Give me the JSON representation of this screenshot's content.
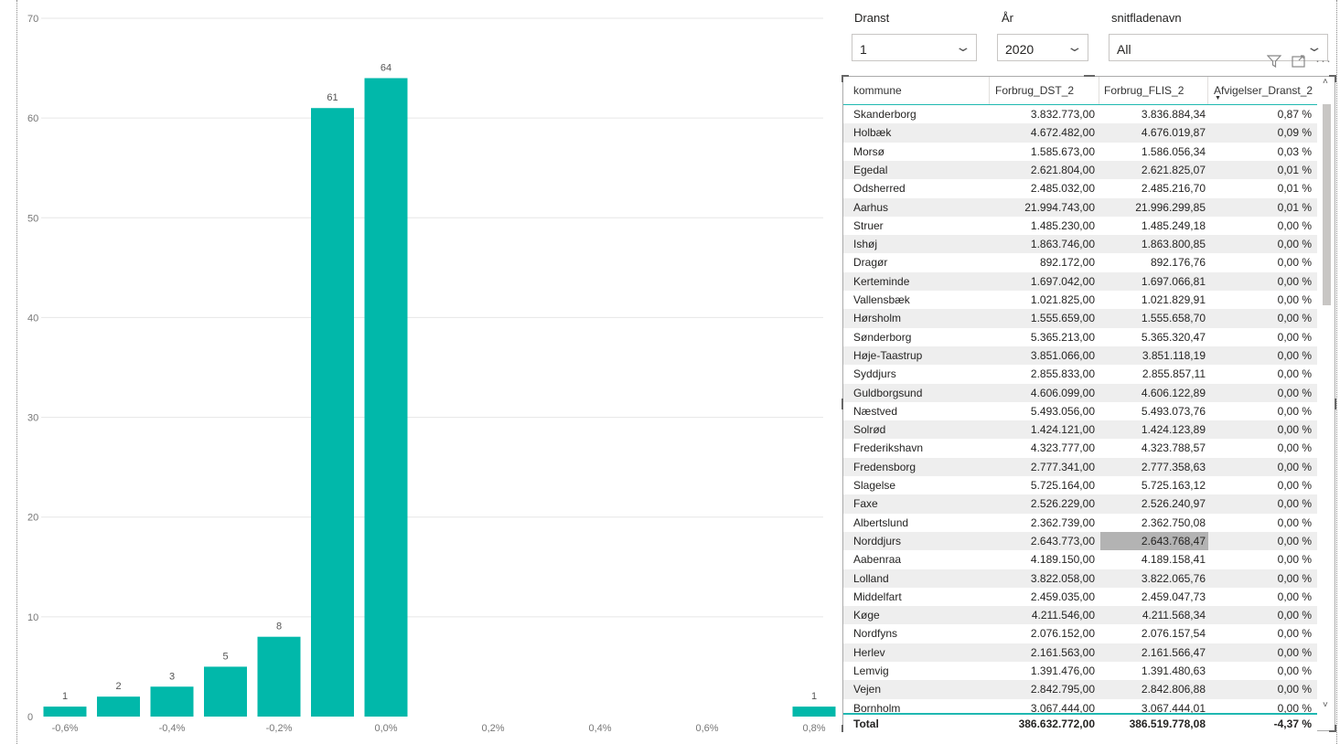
{
  "chart_data": {
    "type": "bar",
    "x_ticks": [
      "-0,6%",
      "-0,4%",
      "-0,2%",
      "0,0%",
      "0,2%",
      "0,4%",
      "0,6%",
      "0,8%"
    ],
    "y_ticks": [
      "0",
      "10",
      "20",
      "30",
      "40",
      "50",
      "60",
      "70"
    ],
    "ylim": [
      0,
      70
    ],
    "xlim": [
      -0.7,
      0.85
    ],
    "grid": true,
    "color": "#01b8aa",
    "x": [
      -0.6,
      -0.5,
      -0.4,
      -0.3,
      -0.2,
      -0.1,
      0.0,
      0.8
    ],
    "values": [
      1,
      2,
      3,
      5,
      8,
      61,
      64,
      1
    ],
    "data_labels": [
      "1",
      "2",
      "3",
      "5",
      "8",
      "61",
      "64",
      "1"
    ]
  },
  "slicers": {
    "dranst": {
      "label": "Dranst",
      "value": "1"
    },
    "aar": {
      "label": "År",
      "value": "2020"
    },
    "snitflade": {
      "label": "snitfladenavn",
      "value": "All"
    }
  },
  "visual_header": {
    "filter_icon": "filter-icon",
    "focus_icon": "focus-mode-icon",
    "more_icon": "more-options-icon"
  },
  "table": {
    "headers": [
      "kommune",
      "Forbrug_DST_2",
      "Forbrug_FLIS_2",
      "Afvigelser_Dranst_2"
    ],
    "rows": [
      [
        "Skanderborg",
        "3.832.773,00",
        "3.836.884,34",
        "0,87 %"
      ],
      [
        "Holbæk",
        "4.672.482,00",
        "4.676.019,87",
        "0,09 %"
      ],
      [
        "Morsø",
        "1.585.673,00",
        "1.586.056,34",
        "0,03 %"
      ],
      [
        "Egedal",
        "2.621.804,00",
        "2.621.825,07",
        "0,01 %"
      ],
      [
        "Odsherred",
        "2.485.032,00",
        "2.485.216,70",
        "0,01 %"
      ],
      [
        "Aarhus",
        "21.994.743,00",
        "21.996.299,85",
        "0,01 %"
      ],
      [
        "Struer",
        "1.485.230,00",
        "1.485.249,18",
        "0,00 %"
      ],
      [
        "Ishøj",
        "1.863.746,00",
        "1.863.800,85",
        "0,00 %"
      ],
      [
        "Dragør",
        "892.172,00",
        "892.176,76",
        "0,00 %"
      ],
      [
        "Kerteminde",
        "1.697.042,00",
        "1.697.066,81",
        "0,00 %"
      ],
      [
        "Vallensbæk",
        "1.021.825,00",
        "1.021.829,91",
        "0,00 %"
      ],
      [
        "Hørsholm",
        "1.555.659,00",
        "1.555.658,70",
        "0,00 %"
      ],
      [
        "Sønderborg",
        "5.365.213,00",
        "5.365.320,47",
        "0,00 %"
      ],
      [
        "Høje-Taastrup",
        "3.851.066,00",
        "3.851.118,19",
        "0,00 %"
      ],
      [
        "Syddjurs",
        "2.855.833,00",
        "2.855.857,11",
        "0,00 %"
      ],
      [
        "Guldborgsund",
        "4.606.099,00",
        "4.606.122,89",
        "0,00 %"
      ],
      [
        "Næstved",
        "5.493.056,00",
        "5.493.073,76",
        "0,00 %"
      ],
      [
        "Solrød",
        "1.424.121,00",
        "1.424.123,89",
        "0,00 %"
      ],
      [
        "Frederikshavn",
        "4.323.777,00",
        "4.323.788,57",
        "0,00 %"
      ],
      [
        "Fredensborg",
        "2.777.341,00",
        "2.777.358,63",
        "0,00 %"
      ],
      [
        "Slagelse",
        "5.725.164,00",
        "5.725.163,12",
        "0,00 %"
      ],
      [
        "Faxe",
        "2.526.229,00",
        "2.526.240,97",
        "0,00 %"
      ],
      [
        "Albertslund",
        "2.362.739,00",
        "2.362.750,08",
        "0,00 %"
      ],
      [
        "Norddjurs",
        "2.643.773,00",
        "2.643.768,47",
        "0,00 %"
      ],
      [
        "Aabenraa",
        "4.189.150,00",
        "4.189.158,41",
        "0,00 %"
      ],
      [
        "Lolland",
        "3.822.058,00",
        "3.822.065,76",
        "0,00 %"
      ],
      [
        "Middelfart",
        "2.459.035,00",
        "2.459.047,73",
        "0,00 %"
      ],
      [
        "Køge",
        "4.211.546,00",
        "4.211.568,34",
        "0,00 %"
      ],
      [
        "Nordfyns",
        "2.076.152,00",
        "2.076.157,54",
        "0,00 %"
      ],
      [
        "Herlev",
        "2.161.563,00",
        "2.161.566,47",
        "0,00 %"
      ],
      [
        "Lemvig",
        "1.391.476,00",
        "1.391.480,63",
        "0,00 %"
      ],
      [
        "Vejen",
        "2.842.795,00",
        "2.842.806,88",
        "0,00 %"
      ],
      [
        "Bornholm",
        "3.067.444,00",
        "3.067.444,01",
        "0,00 %"
      ]
    ],
    "highlighted_row": 23,
    "total": [
      "Total",
      "386.632.772,00",
      "386.519.778,08",
      "-4,37 %"
    ],
    "sort_icon": "sort-descending-icon"
  }
}
